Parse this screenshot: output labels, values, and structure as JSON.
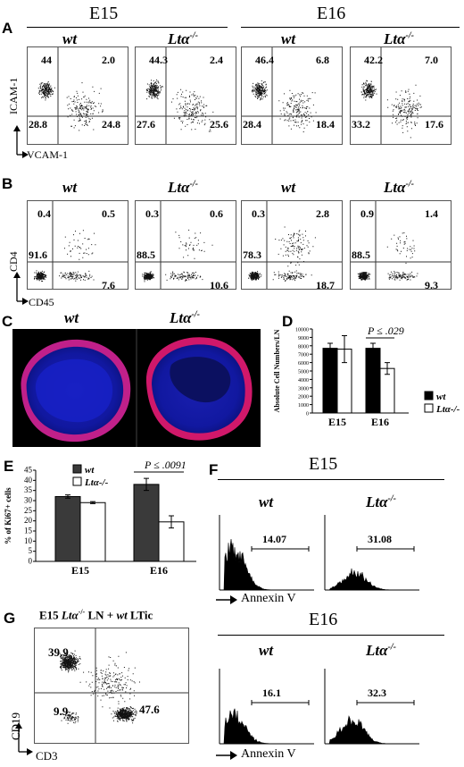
{
  "panelA": {
    "letter": "A",
    "headers": [
      "E15",
      "E16"
    ],
    "genotypes": [
      "wt",
      "Ltα",
      "wt",
      "Ltα"
    ],
    "sup": "-/-",
    "quadrants": [
      [
        "44",
        "2.0",
        "28.8",
        "24.8"
      ],
      [
        "44.3",
        "2.4",
        "27.6",
        "25.6"
      ],
      [
        "46.4",
        "6.8",
        "28.4",
        "18.4"
      ],
      [
        "42.2",
        "7.0",
        "33.2",
        "17.6"
      ]
    ],
    "y_axis": "ICAM-1",
    "x_axis": "VCAM-1"
  },
  "panelB": {
    "letter": "B",
    "genotypes": [
      "wt",
      "Ltα",
      "wt",
      "Ltα"
    ],
    "sup": "-/-",
    "quadrants": [
      [
        "0.4",
        "0.5",
        "91.6",
        "7.6"
      ],
      [
        "0.3",
        "0.6",
        "88.5",
        "10.6"
      ],
      [
        "0.3",
        "2.8",
        "78.3",
        "18.7"
      ],
      [
        "0.9",
        "1.4",
        "88.5",
        "9.3"
      ]
    ],
    "y_axis": "CD4",
    "x_axis": "CD45"
  },
  "panelC": {
    "letter": "C",
    "genotypes": [
      "wt",
      "Ltα"
    ],
    "sup": "-/-"
  },
  "panelD": {
    "letter": "D",
    "pvalue": "P ≤ .029",
    "ylabel": "Absolute Cell Numbers/LN",
    "legend": [
      "wt",
      "Ltα-/-"
    ],
    "chart_data": {
      "type": "bar",
      "categories": [
        "E15",
        "E16"
      ],
      "series": [
        {
          "name": "wt",
          "values": [
            7700,
            7700
          ],
          "errors": [
            600,
            600
          ]
        },
        {
          "name": "Ltα-/-",
          "values": [
            7600,
            5300
          ],
          "errors": [
            1600,
            700
          ]
        }
      ],
      "ylim": [
        0,
        10000
      ],
      "yticks": [
        "0",
        "1000",
        "2000",
        "3000",
        "4000",
        "5000",
        "6000",
        "7000",
        "8000",
        "9000",
        "10000"
      ]
    }
  },
  "panelE": {
    "letter": "E",
    "pvalue": "P ≤ .0091",
    "ylabel": "% of Ki67+ cells",
    "legend": [
      "wt",
      "Ltα-/-"
    ],
    "chart_data": {
      "type": "bar",
      "categories": [
        "E15",
        "E16"
      ],
      "series": [
        {
          "name": "wt",
          "values": [
            32,
            38
          ],
          "errors": [
            0.8,
            3
          ]
        },
        {
          "name": "Ltα-/-",
          "values": [
            29,
            19.5
          ],
          "errors": [
            0.5,
            3
          ]
        }
      ],
      "ylim": [
        0,
        45
      ],
      "yticks": [
        "0",
        "5",
        "10",
        "15",
        "20",
        "25",
        "30",
        "35",
        "40",
        "45"
      ]
    }
  },
  "panelF": {
    "letter": "F",
    "headers": [
      "E15",
      "E16"
    ],
    "genotypes": [
      "wt",
      "Ltα",
      "wt",
      "Ltα"
    ],
    "sup": "-/-",
    "values": [
      "14.07",
      "31.08",
      "16.1",
      "32.3"
    ],
    "x_axis": "Annexin V"
  },
  "panelG": {
    "letter": "G",
    "title_pre": "E15",
    "title_geno": "Ltα",
    "title_sup": "-/-",
    "title_mid": "LN +",
    "title_wt": "wt",
    "title_end": "LTic",
    "quadrants": [
      "39.9",
      "9.9",
      "47.6"
    ],
    "y_axis": "CD19",
    "x_axis": "CD3"
  }
}
